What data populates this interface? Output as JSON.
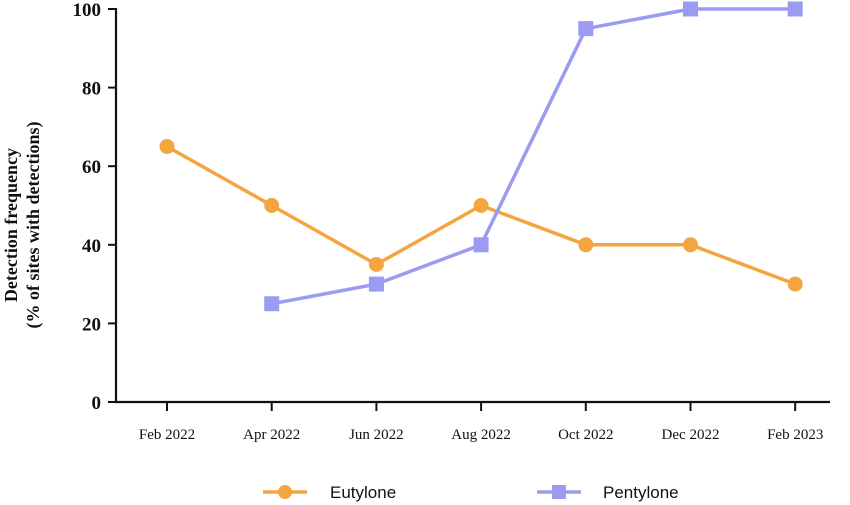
{
  "chart_data": {
    "type": "line",
    "title": "",
    "xlabel": "",
    "ylabel_lines": [
      "Detection frequency",
      "(% of sites with detections)"
    ],
    "categories": [
      "Feb 2022",
      "Apr 2022",
      "Jun 2022",
      "Aug 2022",
      "Oct 2022",
      "Dec 2022",
      "Feb 2023"
    ],
    "ylim": [
      0,
      100
    ],
    "yticks": [
      "0",
      "20",
      "40",
      "60",
      "80",
      "100"
    ],
    "grid": false,
    "legend_position": "bottom",
    "series": [
      {
        "name": "Eutylone",
        "color": "#F5A540",
        "marker": "circle",
        "values": [
          65,
          50,
          35,
          50,
          40,
          40,
          30
        ]
      },
      {
        "name": "Pentylone",
        "color": "#9B9BF2",
        "marker": "square",
        "values": [
          null,
          25,
          30,
          40,
          95,
          100,
          100
        ]
      }
    ]
  }
}
